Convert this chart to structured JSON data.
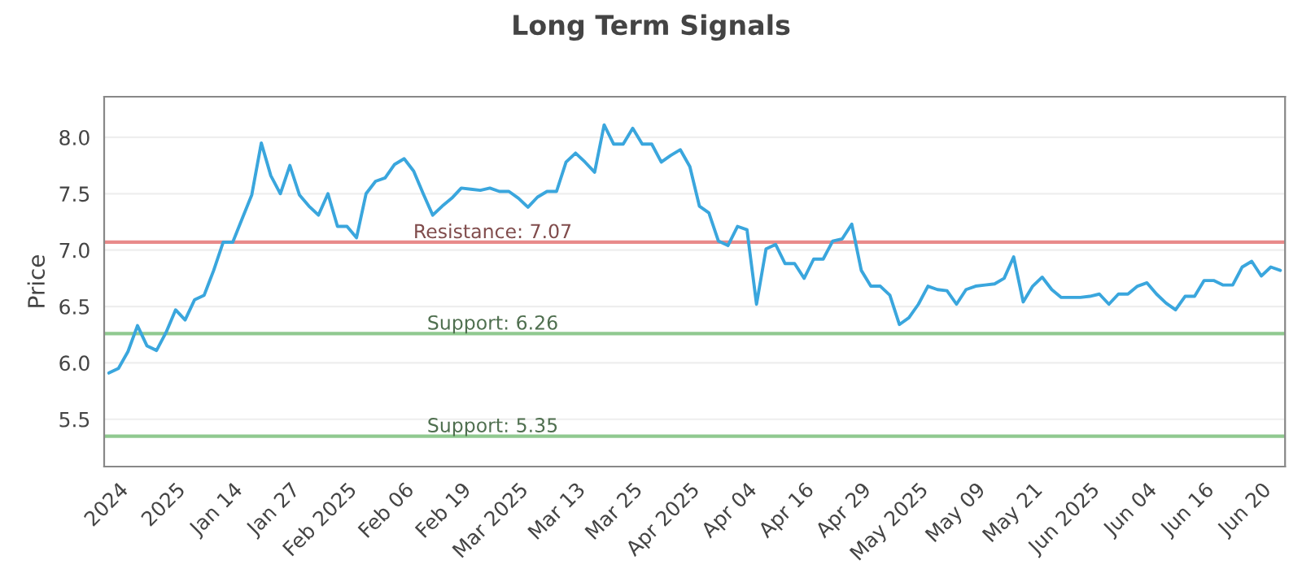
{
  "chart_data": {
    "type": "line",
    "title": "Long Term Signals",
    "ylabel": "Price",
    "categories": [
      null,
      "2024",
      null,
      null,
      null,
      null,
      null,
      "2025",
      null,
      null,
      null,
      null,
      null,
      "Jan 14",
      null,
      null,
      null,
      null,
      null,
      "Jan 27",
      null,
      null,
      null,
      null,
      null,
      "Feb 2025",
      null,
      null,
      null,
      null,
      null,
      "Feb 06",
      null,
      null,
      null,
      null,
      null,
      "Feb 19",
      null,
      null,
      null,
      null,
      null,
      "Mar 2025",
      null,
      null,
      null,
      null,
      null,
      "Mar 13",
      null,
      null,
      null,
      null,
      null,
      "Mar 25",
      null,
      null,
      null,
      null,
      null,
      "Apr 2025",
      null,
      null,
      null,
      null,
      null,
      "Apr 04",
      null,
      null,
      null,
      null,
      null,
      "Apr 16",
      null,
      null,
      null,
      null,
      null,
      "Apr 29",
      null,
      null,
      null,
      null,
      null,
      "May 2025",
      null,
      null,
      null,
      null,
      null,
      "May 09",
      null,
      null,
      null,
      null,
      null,
      "May 21",
      null,
      null,
      null,
      null,
      null,
      "Jun 2025",
      null,
      null,
      null,
      null,
      null,
      "Jun 04",
      null,
      null,
      null,
      null,
      null,
      "Jun 16",
      null,
      null,
      null,
      null,
      null,
      "Jun 20",
      null,
      null
    ],
    "series": [
      {
        "color": "#3aa6dd",
        "values": [
          5.91,
          5.95,
          6.1,
          6.33,
          6.15,
          6.11,
          6.27,
          6.47,
          6.38,
          6.56,
          6.6,
          6.82,
          7.07,
          7.07,
          7.28,
          7.49,
          7.95,
          7.66,
          7.5,
          7.75,
          7.49,
          7.39,
          7.31,
          7.5,
          7.21,
          7.21,
          7.11,
          7.5,
          7.61,
          7.64,
          7.76,
          7.81,
          7.7,
          7.5,
          7.31,
          7.39,
          7.46,
          7.55,
          7.54,
          7.53,
          7.55,
          7.52,
          7.52,
          7.46,
          7.38,
          7.47,
          7.52,
          7.52,
          7.78,
          7.86,
          7.78,
          7.69,
          8.11,
          7.94,
          7.94,
          8.08,
          7.94,
          7.94,
          7.78,
          7.84,
          7.89,
          7.74,
          7.39,
          7.33,
          7.08,
          7.04,
          7.21,
          7.18,
          6.52,
          7.01,
          7.05,
          6.88,
          6.88,
          6.75,
          6.92,
          6.92,
          7.08,
          7.1,
          7.23,
          6.82,
          6.68,
          6.68,
          6.6,
          6.34,
          6.4,
          6.52,
          6.68,
          6.65,
          6.64,
          6.52,
          6.65,
          6.68,
          6.69,
          6.7,
          6.75,
          6.94,
          6.54,
          6.68,
          6.76,
          6.65,
          6.58,
          6.58,
          6.58,
          6.59,
          6.61,
          6.52,
          6.61,
          6.61,
          6.68,
          6.71,
          6.61,
          6.53,
          6.47,
          6.59,
          6.59,
          6.73,
          6.73,
          6.69,
          6.69,
          6.85,
          6.9,
          6.77,
          6.85,
          6.82
        ]
      }
    ],
    "ylim": [
      5.08,
      8.36
    ],
    "yticks": [
      {
        "value": 5.5,
        "label": "5.5"
      },
      {
        "value": 6.0,
        "label": "6.0"
      },
      {
        "value": 6.5,
        "label": "6.5"
      },
      {
        "value": 7.0,
        "label": "7.0"
      },
      {
        "value": 7.5,
        "label": "7.5"
      },
      {
        "value": 8.0,
        "label": "8.0"
      }
    ],
    "grid": "y",
    "legend": false,
    "marker": "none",
    "line_style": "solid",
    "ref_lines": [
      {
        "axis": "y",
        "value": 7.07,
        "label": "Resistance: 7.07",
        "color": "#e88a8a"
      },
      {
        "axis": "y",
        "value": 6.26,
        "label": "Support: 6.26",
        "color": "#90c990"
      },
      {
        "axis": "y",
        "value": 5.35,
        "label": "Support: 5.35",
        "color": "#90c990"
      }
    ]
  }
}
